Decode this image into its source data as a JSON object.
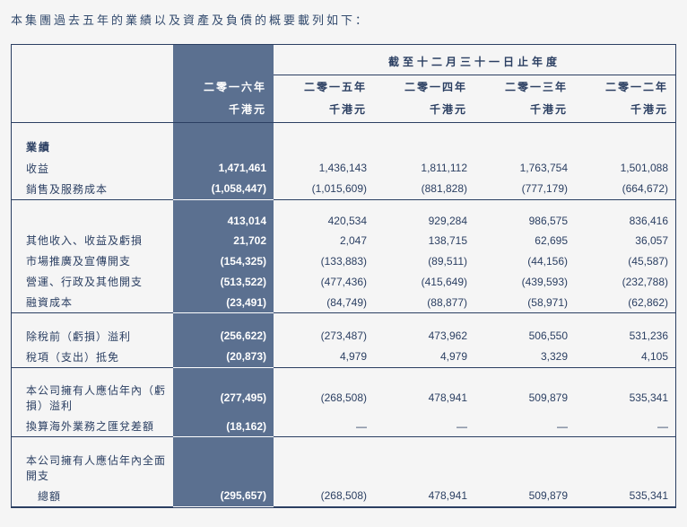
{
  "intro_text": "本集團過去五年的業績以及資產及負債的概要載列如下：",
  "header": {
    "super": "截至十二月三十一日止年度",
    "years": [
      "二零一六年",
      "二零一五年",
      "二零一四年",
      "二零一三年",
      "二零一二年"
    ],
    "unit": "千港元"
  },
  "sections": {
    "results_title": "業績"
  },
  "rows": {
    "revenue": {
      "label": "收益",
      "v": [
        "1,471,461",
        "1,436,143",
        "1,811,112",
        "1,763,754",
        "1,501,088"
      ]
    },
    "cos": {
      "label": "銷售及服務成本",
      "v": [
        "(1,058,447)",
        "(1,015,609)",
        "(881,828)",
        "(777,179)",
        "(664,672)"
      ]
    },
    "gross": {
      "label": "",
      "v": [
        "413,014",
        "420,534",
        "929,284",
        "986,575",
        "836,416"
      ]
    },
    "other_inc": {
      "label": "其他收入、收益及虧損",
      "v": [
        "21,702",
        "2,047",
        "138,715",
        "62,695",
        "36,057"
      ]
    },
    "marketing": {
      "label": "市場推廣及宣傳開支",
      "v": [
        "(154,325)",
        "(133,883)",
        "(89,511)",
        "(44,156)",
        "(45,587)"
      ]
    },
    "admin": {
      "label": "營運、行政及其他開支",
      "v": [
        "(513,522)",
        "(477,436)",
        "(415,649)",
        "(439,593)",
        "(232,788)"
      ]
    },
    "finance": {
      "label": "融資成本",
      "v": [
        "(23,491)",
        "(84,749)",
        "(88,877)",
        "(58,971)",
        "(62,862)"
      ]
    },
    "pbt": {
      "label": "除稅前（虧損）溢利",
      "v": [
        "(256,622)",
        "(273,487)",
        "473,962",
        "506,550",
        "531,236"
      ]
    },
    "tax": {
      "label": "稅項（支出）抵免",
      "v": [
        "(20,873)",
        "4,979",
        "4,979",
        "3,329",
        "4,105"
      ]
    },
    "owners_pl": {
      "label": "本公司擁有人應佔年內（虧損）溢利",
      "v": [
        "(277,495)",
        "(268,508)",
        "478,941",
        "509,879",
        "535,341"
      ]
    },
    "fx": {
      "label": "換算海外業務之匯兌差額",
      "v": [
        "(18,162)",
        "—",
        "—",
        "—",
        "—"
      ]
    },
    "tci_label1": {
      "label": "本公司擁有人應佔年內全面開支"
    },
    "tci": {
      "label": "　總額",
      "v": [
        "(295,657)",
        "(268,508)",
        "478,941",
        "509,879",
        "535,341"
      ]
    }
  },
  "style": {
    "text_color": "#2b3f62",
    "highlight_bg": "#5b7090",
    "highlight_fg": "#ffffff",
    "border_color": "#2b3f62",
    "page_bg": "#f5f5f5"
  }
}
